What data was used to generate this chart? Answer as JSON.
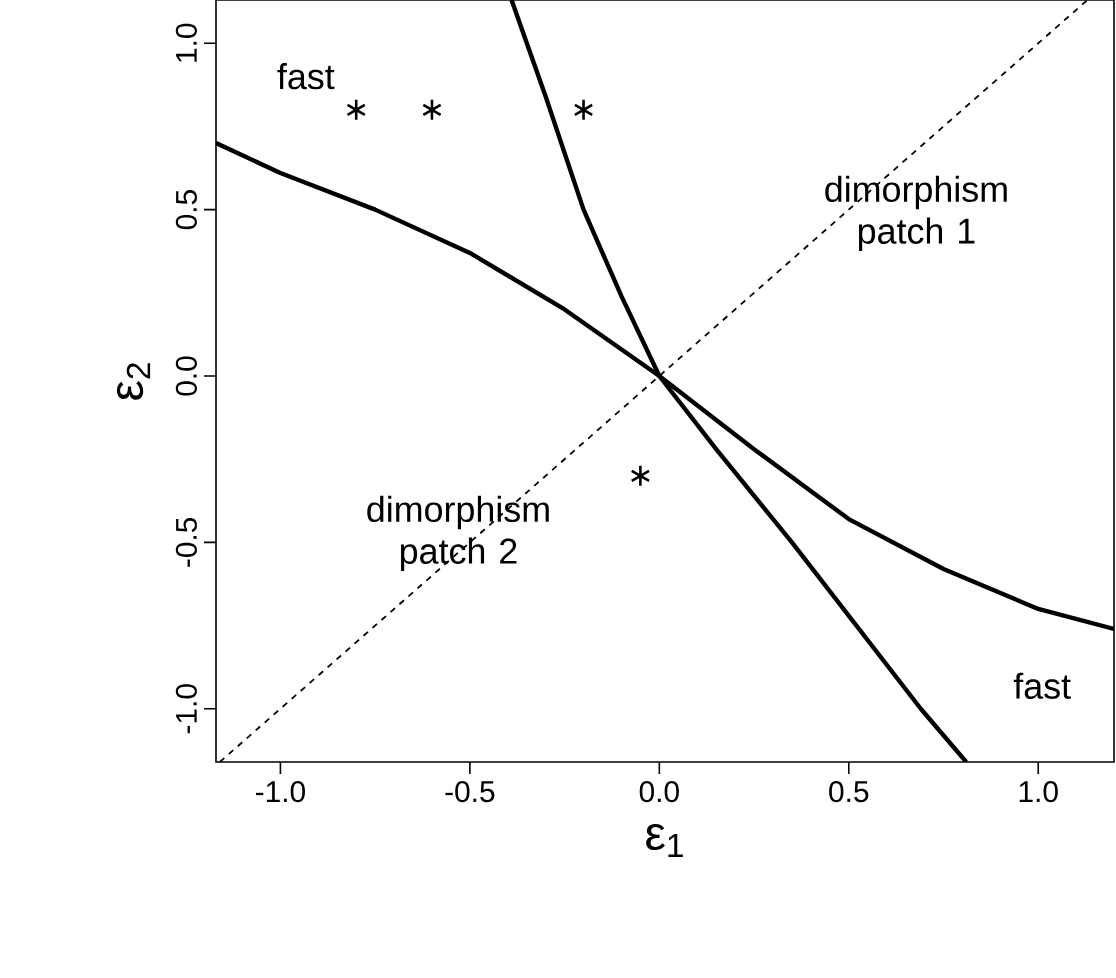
{
  "chart_data": {
    "type": "line",
    "xlabel": "ε$_{1}$",
    "ylabel": "ε$_{2}$",
    "xlim": [
      -1.17,
      1.2
    ],
    "ylim": [
      -1.16,
      1.13
    ],
    "xticks": [
      {
        "value": -1,
        "label": "-1.0"
      },
      {
        "value": -0.5,
        "label": "-0.5"
      },
      {
        "value": 0,
        "label": "0.0"
      },
      {
        "value": 0.5,
        "label": "0.5"
      },
      {
        "value": 1,
        "label": "1.0"
      }
    ],
    "yticks": [
      {
        "value": -1,
        "label": "-1.0"
      },
      {
        "value": -0.5,
        "label": "-0.5"
      },
      {
        "value": 0,
        "label": "0.0"
      },
      {
        "value": 0.5,
        "label": "0.5"
      },
      {
        "value": 1,
        "label": "1.0"
      }
    ],
    "grid": false,
    "series": [
      {
        "color": "#000000",
        "line_style": "dashed",
        "marker": "none",
        "x": [
          -1.16,
          1.13
        ],
        "values": [
          -1.16,
          1.13
        ]
      },
      {
        "color": "#000000",
        "line_style": "solid",
        "marker": "none",
        "x": [
          -0.39,
          -0.3,
          -0.2,
          -0.1,
          0.0,
          0.15,
          0.35,
          0.52,
          0.69,
          0.81
        ],
        "values": [
          1.13,
          0.84,
          0.5,
          0.24,
          0.0,
          -0.22,
          -0.5,
          -0.75,
          -1.0,
          -1.16
        ]
      },
      {
        "color": "#000000",
        "line_style": "solid",
        "marker": "none",
        "x": [
          -1.17,
          -1.0,
          -0.75,
          -0.5,
          -0.25,
          0.0,
          0.25,
          0.5,
          0.75,
          1.0,
          1.2
        ],
        "values": [
          0.7,
          0.61,
          0.5,
          0.37,
          0.2,
          0.0,
          -0.22,
          -0.43,
          -0.58,
          -0.7,
          -0.76
        ]
      },
      {
        "type": "scatter",
        "color": "#000000",
        "marker": "cross",
        "x": [
          -0.8,
          -0.6,
          -0.2,
          -0.05
        ],
        "values": [
          0.8,
          0.8,
          0.8,
          -0.3
        ]
      }
    ],
    "annotations": [
      "fast",
      "dimorphism patch 1",
      "dimorphism patch 2",
      "fast"
    ]
  }
}
